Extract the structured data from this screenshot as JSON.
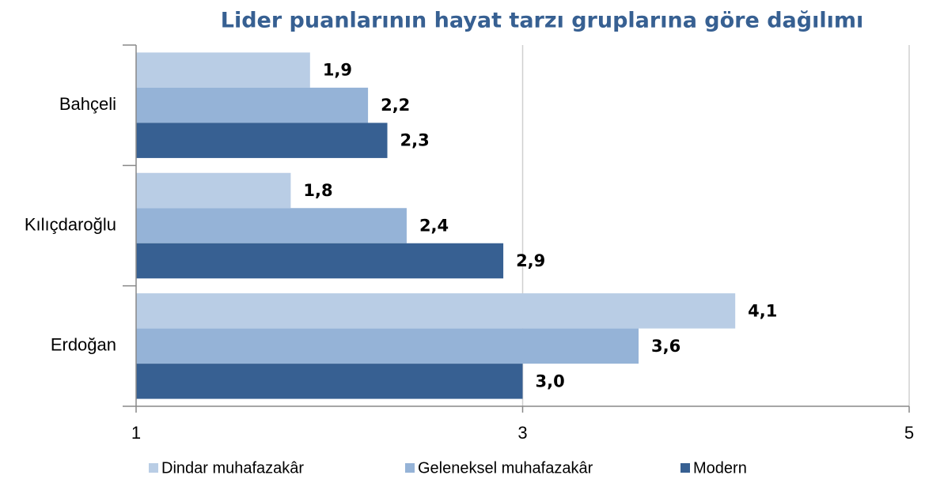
{
  "chart_data": {
    "type": "bar",
    "orientation": "horizontal",
    "title": "Lider puanlarının hayat tarzı gruplarına göre dağılımı",
    "categories": [
      "Bahçeli",
      "Kılıçdaroğlu",
      "Erdoğan"
    ],
    "series": [
      {
        "name": "Dindar muhafazakâr",
        "color": "#b9cde5",
        "values": [
          1.9,
          1.8,
          4.1
        ],
        "value_labels": [
          "1,9",
          "1,8",
          "4,1"
        ]
      },
      {
        "name": "Geleneksel muhafazakâr",
        "color": "#95b3d7",
        "values": [
          2.2,
          2.4,
          3.6
        ],
        "value_labels": [
          "2,2",
          "2,4",
          "3,6"
        ]
      },
      {
        "name": "Modern",
        "color": "#376092",
        "values": [
          2.3,
          2.9,
          3.0
        ],
        "value_labels": [
          "2,3",
          "2,9",
          "3,0"
        ]
      }
    ],
    "xlim": [
      1,
      5
    ],
    "xticks": [
      1,
      3,
      5
    ],
    "grid": true,
    "legend": "bottom"
  }
}
